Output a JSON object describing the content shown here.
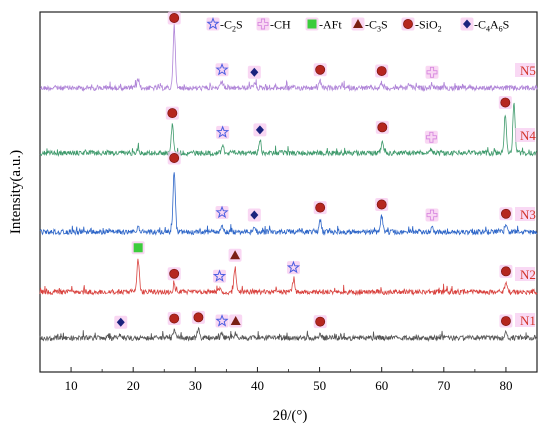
{
  "chart_data": {
    "type": "line",
    "title": "",
    "xlabel": "2θ/(°)",
    "ylabel": "Intensity(a.u.)",
    "xlim": [
      5,
      85
    ],
    "xticks": [
      10,
      20,
      30,
      40,
      50,
      60,
      70,
      80
    ],
    "grid": false,
    "legend_position": "top",
    "legend": [
      {
        "label": "-C",
        "sub": "2",
        "tail": "S",
        "marker": "star",
        "color": "#4a5de0"
      },
      {
        "label": "-CH",
        "sub": "",
        "tail": "",
        "marker": "cross",
        "color": "#d88ae0"
      },
      {
        "label": "-AFt",
        "sub": "",
        "tail": "",
        "marker": "square",
        "color": "#3ccc3c"
      },
      {
        "label": "-C",
        "sub": "3",
        "tail": "S",
        "marker": "triangle",
        "color": "#7a1f14"
      },
      {
        "label": "-SiO",
        "sub": "2",
        "tail": "",
        "marker": "circle",
        "color": "#b5261e"
      },
      {
        "label": "-C",
        "sub": "4",
        "tail": "A6S",
        "marker": "diamond",
        "color": "#1a237e"
      }
    ],
    "series": [
      {
        "name": "N5",
        "color": "#b085d8",
        "peaks": [
          [
            26.6,
            100
          ],
          [
            20.8,
            15
          ],
          [
            34.3,
            10
          ],
          [
            39.5,
            6
          ],
          [
            50.1,
            10
          ],
          [
            60.0,
            8
          ],
          [
            68.1,
            6
          ],
          [
            64.5,
            7
          ]
        ],
        "markers": [
          {
            "type": "circle",
            "x": 26.6
          },
          {
            "type": "star",
            "x": 34.3
          },
          {
            "type": "diamond",
            "x": 39.5
          },
          {
            "type": "circle",
            "x": 50.1
          },
          {
            "type": "circle",
            "x": 60.0
          },
          {
            "type": "cross",
            "x": 68.1
          }
        ]
      },
      {
        "name": "N4",
        "color": "#3f9a6c",
        "peaks": [
          [
            26.3,
            45
          ],
          [
            34.4,
            14
          ],
          [
            40.4,
            18
          ],
          [
            60.1,
            22
          ],
          [
            68.0,
            6
          ],
          [
            79.9,
            62
          ],
          [
            81.3,
            80
          ],
          [
            20.8,
            8
          ]
        ],
        "markers": [
          {
            "type": "circle",
            "x": 26.3
          },
          {
            "type": "star",
            "x": 34.4
          },
          {
            "type": "diamond",
            "x": 40.4
          },
          {
            "type": "circle",
            "x": 60.1
          },
          {
            "type": "cross",
            "x": 68.0
          },
          {
            "type": "circle",
            "x": 79.9
          }
        ]
      },
      {
        "name": "N3",
        "color": "#2e66c8",
        "peaks": [
          [
            26.6,
            100
          ],
          [
            20.8,
            10
          ],
          [
            34.3,
            12
          ],
          [
            39.5,
            8
          ],
          [
            50.1,
            20
          ],
          [
            60.0,
            25
          ],
          [
            68.1,
            8
          ],
          [
            80.0,
            10
          ]
        ],
        "markers": [
          {
            "type": "circle",
            "x": 26.6
          },
          {
            "type": "star",
            "x": 34.3
          },
          {
            "type": "diamond",
            "x": 39.5
          },
          {
            "type": "circle",
            "x": 50.1
          },
          {
            "type": "circle",
            "x": 60.0
          },
          {
            "type": "cross",
            "x": 68.1
          },
          {
            "type": "circle",
            "x": 80.0
          }
        ]
      },
      {
        "name": "N2",
        "color": "#d9433f",
        "peaks": [
          [
            20.8,
            52
          ],
          [
            26.6,
            10
          ],
          [
            33.9,
            6
          ],
          [
            36.4,
            40
          ],
          [
            45.8,
            20
          ],
          [
            80.0,
            14
          ]
        ],
        "markers": [
          {
            "type": "square",
            "x": 20.8
          },
          {
            "type": "circle",
            "x": 26.6
          },
          {
            "type": "star",
            "x": 33.9
          },
          {
            "type": "triangle",
            "x": 36.4
          },
          {
            "type": "star",
            "x": 45.8
          },
          {
            "type": "circle",
            "x": 80.0
          }
        ]
      },
      {
        "name": "N1",
        "color": "#555555",
        "peaks": [
          [
            18.0,
            6
          ],
          [
            26.6,
            12
          ],
          [
            30.5,
            14
          ],
          [
            34.3,
            8
          ],
          [
            36.5,
            8
          ],
          [
            50.1,
            7
          ],
          [
            80.0,
            8
          ]
        ],
        "markers": [
          {
            "type": "diamond",
            "x": 18.0
          },
          {
            "type": "circle",
            "x": 26.6
          },
          {
            "type": "circle",
            "x": 30.5
          },
          {
            "type": "star",
            "x": 34.3
          },
          {
            "type": "triangle",
            "x": 36.5
          },
          {
            "type": "circle",
            "x": 50.1
          },
          {
            "type": "circle",
            "x": 80.0
          }
        ]
      }
    ]
  }
}
